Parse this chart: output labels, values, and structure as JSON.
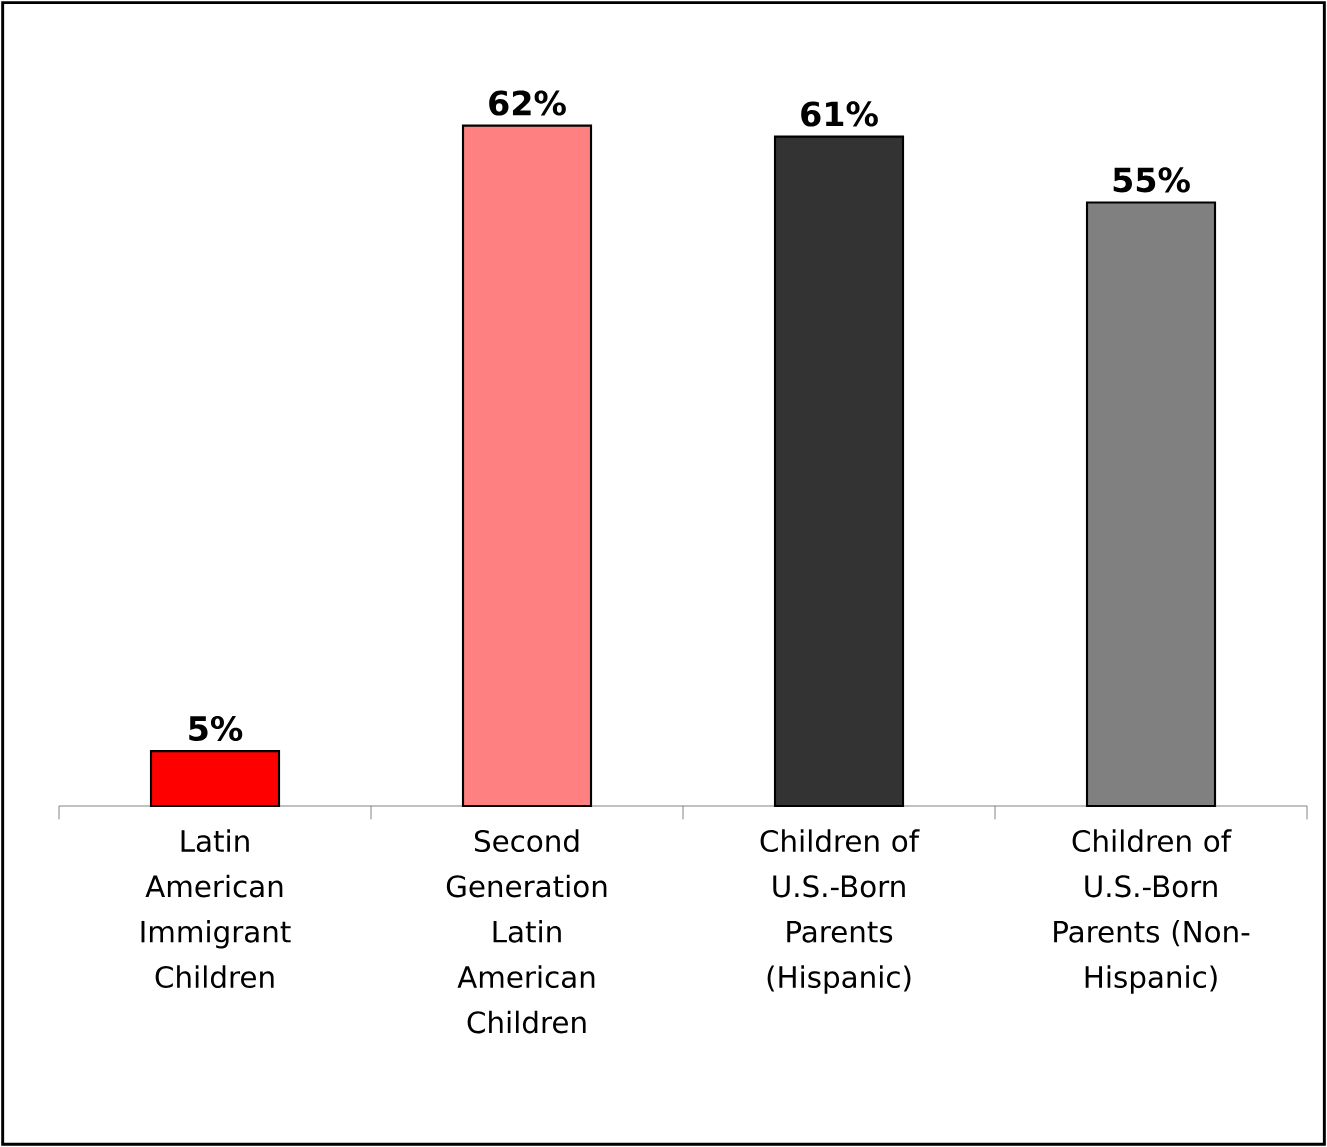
{
  "chart_data": {
    "type": "bar",
    "categories": [
      "Latin American Immigrant Children",
      "Second Generation Latin American Children",
      "Children of U.S.-Born Parents (Hispanic)",
      "Children of U.S.-Born Parents (Non-Hispanic)"
    ],
    "values": [
      5,
      62,
      61,
      55
    ],
    "value_labels": [
      "5%",
      "62%",
      "61%",
      "55%"
    ],
    "colors": [
      "#ff0000",
      "#ff8080",
      "#333333",
      "#808080"
    ]
  }
}
